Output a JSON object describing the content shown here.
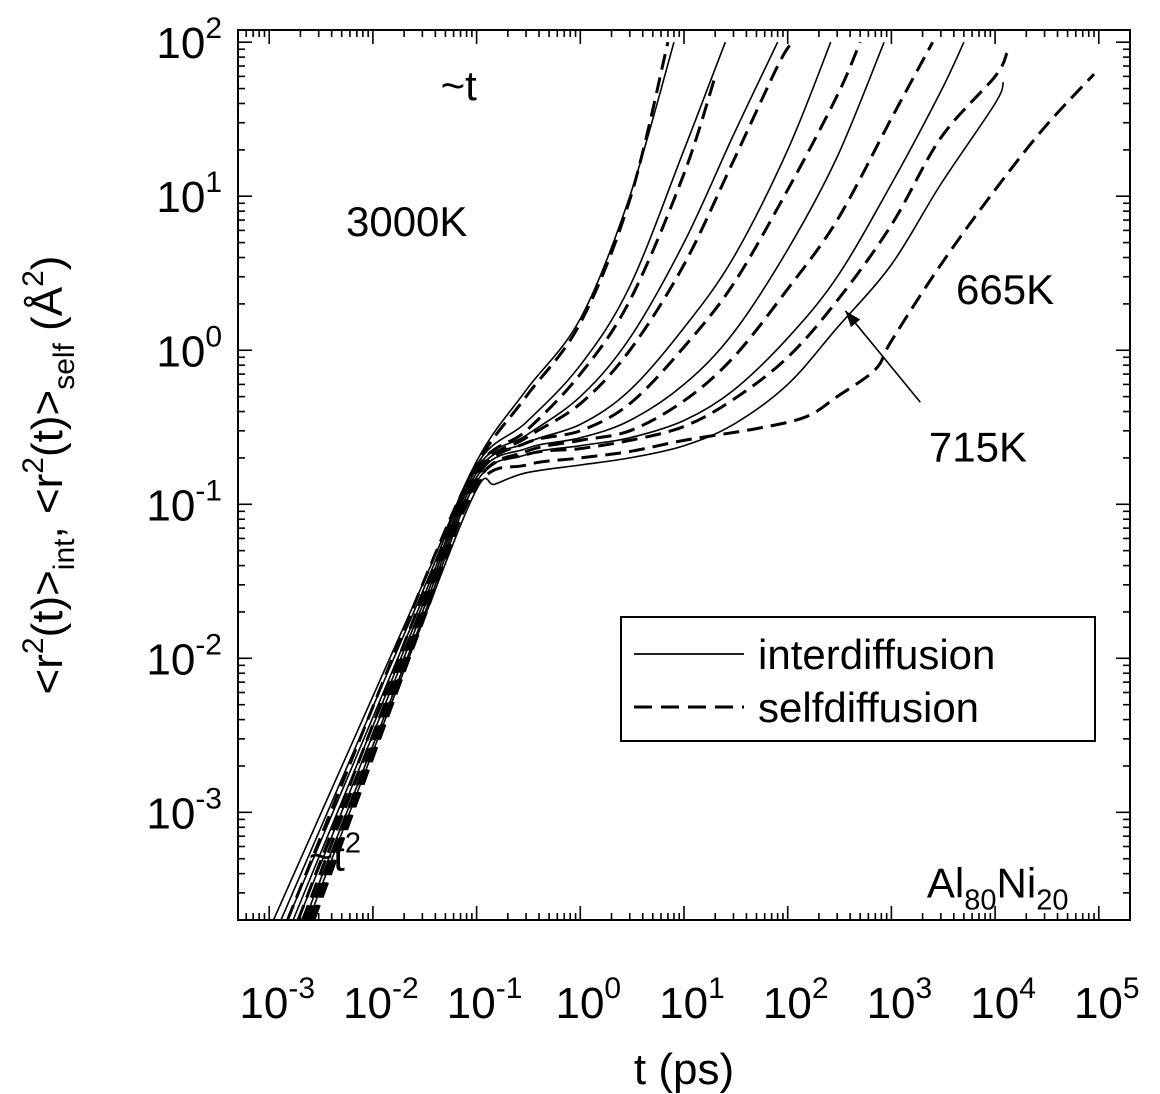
{
  "chart_data": {
    "type": "line",
    "x_scale": "log",
    "y_scale": "log",
    "xlim": [
      0.0005,
      200000
    ],
    "ylim": [
      0.0002,
      120
    ],
    "xlabel": "t (ps)",
    "ylabel": {
      "main": "<r",
      "sup1": "2",
      "mid1": "(t)>",
      "sub1": "int",
      "mid2": ", <r",
      "sup2": "2",
      "mid3": "(t)>",
      "sub2": "self",
      "mid4": " (Å",
      "sup3": "2",
      "end": ")"
    },
    "x_ticks": [
      {
        "value": 0.001,
        "base": "10",
        "exp": "-3"
      },
      {
        "value": 0.01,
        "base": "10",
        "exp": "-2"
      },
      {
        "value": 0.1,
        "base": "10",
        "exp": "-1"
      },
      {
        "value": 1,
        "base": "10",
        "exp": "0"
      },
      {
        "value": 10,
        "base": "10",
        "exp": "1"
      },
      {
        "value": 100,
        "base": "10",
        "exp": "2"
      },
      {
        "value": 1000,
        "base": "10",
        "exp": "3"
      },
      {
        "value": 10000,
        "base": "10",
        "exp": "4"
      },
      {
        "value": 100000,
        "base": "10",
        "exp": "5"
      }
    ],
    "y_ticks": [
      {
        "value": 0.001,
        "base": "10",
        "exp": "-3"
      },
      {
        "value": 0.01,
        "base": "10",
        "exp": "-2"
      },
      {
        "value": 0.1,
        "base": "10",
        "exp": "-1"
      },
      {
        "value": 1,
        "base": "10",
        "exp": "0"
      },
      {
        "value": 10,
        "base": "10",
        "exp": "1"
      },
      {
        "value": 100,
        "base": "10",
        "exp": "2"
      }
    ],
    "legend": {
      "placement": "lower-right",
      "entries": [
        {
          "label": "interdiffusion",
          "style": "solid"
        },
        {
          "label": "selfdiffusion",
          "style": "dashed"
        }
      ]
    },
    "annotations": {
      "slope_t": {
        "text": "~t",
        "x": 0.045,
        "y": 42
      },
      "slope_t2": {
        "base": "~t",
        "exp": "2",
        "x": 0.0024,
        "y": 0.00042
      },
      "label_3000K": {
        "text": "3000K",
        "x": 0.0055,
        "y": 5.5
      },
      "label_665K": {
        "text": "665K",
        "x": 4200,
        "y": 2.0
      },
      "label_715K": {
        "text": "715K",
        "x": 2300,
        "y": 0.19
      },
      "arrow_715K": {
        "from_x": 1900,
        "from_y": 0.46,
        "to_x": 360,
        "to_y": 1.8
      },
      "system": {
        "base1": "Al",
        "sub1": "80",
        "base2": "Ni",
        "sub2": "20",
        "x": 2200,
        "y": 0.00028
      }
    },
    "series": [
      {
        "style": "solid",
        "points": [
          [
            0.0011,
            0.0002
          ],
          [
            0.03,
            0.03
          ],
          [
            0.1,
            0.19
          ],
          [
            0.3,
            0.55
          ],
          [
            1,
            1.6
          ],
          [
            3,
            10
          ],
          [
            8,
            100
          ]
        ]
      },
      {
        "style": "dashed",
        "points": [
          [
            0.0015,
            0.0002
          ],
          [
            0.03,
            0.03
          ],
          [
            0.1,
            0.18
          ],
          [
            0.3,
            0.5
          ],
          [
            1,
            1.5
          ],
          [
            3,
            9.5
          ],
          [
            7,
            100
          ]
        ]
      },
      {
        "style": "solid",
        "points": [
          [
            0.0013,
            0.0002
          ],
          [
            0.03,
            0.027
          ],
          [
            0.1,
            0.18
          ],
          [
            0.3,
            0.34
          ],
          [
            1,
            0.8
          ],
          [
            3,
            2.6
          ],
          [
            10,
            20
          ],
          [
            25,
            100
          ]
        ]
      },
      {
        "style": "dashed",
        "points": [
          [
            0.0019,
            0.0002
          ],
          [
            0.03,
            0.025
          ],
          [
            0.1,
            0.17
          ],
          [
            0.3,
            0.3
          ],
          [
            1,
            0.7
          ],
          [
            3,
            2.1
          ],
          [
            10,
            14
          ],
          [
            20,
            60
          ]
        ]
      },
      {
        "style": "solid",
        "points": [
          [
            0.0015,
            0.0002
          ],
          [
            0.03,
            0.024
          ],
          [
            0.1,
            0.17
          ],
          [
            0.3,
            0.28
          ],
          [
            1,
            0.5
          ],
          [
            3,
            1.2
          ],
          [
            10,
            5
          ],
          [
            30,
            25
          ],
          [
            80,
            100
          ]
        ]
      },
      {
        "style": "dashed",
        "points": [
          [
            0.0021,
            0.0002
          ],
          [
            0.03,
            0.022
          ],
          [
            0.1,
            0.16
          ],
          [
            0.3,
            0.27
          ],
          [
            1,
            0.45
          ],
          [
            3,
            1
          ],
          [
            10,
            3.6
          ],
          [
            30,
            17
          ],
          [
            80,
            70
          ],
          [
            110,
            100
          ]
        ]
      },
      {
        "style": "solid",
        "points": [
          [
            0.0017,
            0.0002
          ],
          [
            0.03,
            0.022
          ],
          [
            0.1,
            0.16
          ],
          [
            0.3,
            0.25
          ],
          [
            1,
            0.33
          ],
          [
            3,
            0.55
          ],
          [
            10,
            1.4
          ],
          [
            30,
            4
          ],
          [
            100,
            20
          ],
          [
            260,
            100
          ]
        ]
      },
      {
        "style": "dashed",
        "points": [
          [
            0.0023,
            0.0002
          ],
          [
            0.03,
            0.02
          ],
          [
            0.1,
            0.15
          ],
          [
            0.3,
            0.25
          ],
          [
            1,
            0.3
          ],
          [
            3,
            0.45
          ],
          [
            10,
            1.05
          ],
          [
            30,
            2.7
          ],
          [
            100,
            11
          ],
          [
            300,
            45
          ],
          [
            500,
            100
          ]
        ]
      },
      {
        "style": "solid",
        "points": [
          [
            0.0019,
            0.0002
          ],
          [
            0.03,
            0.02
          ],
          [
            0.1,
            0.15
          ],
          [
            0.3,
            0.23
          ],
          [
            1,
            0.27
          ],
          [
            3,
            0.35
          ],
          [
            10,
            0.6
          ],
          [
            30,
            1.3
          ],
          [
            100,
            4.5
          ],
          [
            300,
            18
          ],
          [
            850,
            100
          ]
        ]
      },
      {
        "style": "dashed",
        "points": [
          [
            0.0025,
            0.0002
          ],
          [
            0.03,
            0.019
          ],
          [
            0.1,
            0.14
          ],
          [
            0.3,
            0.22
          ],
          [
            1,
            0.26
          ],
          [
            3,
            0.3
          ],
          [
            10,
            0.47
          ],
          [
            30,
            0.9
          ],
          [
            100,
            2.5
          ],
          [
            300,
            7
          ],
          [
            1000,
            32
          ],
          [
            2500,
            100
          ]
        ]
      },
      {
        "style": "solid",
        "points": [
          [
            0.0022,
            0.0002
          ],
          [
            0.03,
            0.018
          ],
          [
            0.1,
            0.14
          ],
          [
            0.3,
            0.21
          ],
          [
            1,
            0.24
          ],
          [
            3,
            0.27
          ],
          [
            10,
            0.35
          ],
          [
            30,
            0.55
          ],
          [
            100,
            1.2
          ],
          [
            300,
            3
          ],
          [
            1000,
            12
          ],
          [
            3000,
            48
          ],
          [
            5000,
            100
          ]
        ]
      },
      {
        "style": "dashed",
        "points": [
          [
            0.0026,
            0.0002
          ],
          [
            0.03,
            0.018
          ],
          [
            0.1,
            0.14
          ],
          [
            0.3,
            0.21
          ],
          [
            1,
            0.23
          ],
          [
            3,
            0.26
          ],
          [
            10,
            0.32
          ],
          [
            30,
            0.48
          ],
          [
            100,
            0.9
          ],
          [
            300,
            2.1
          ],
          [
            1000,
            6.5
          ],
          [
            3000,
            24
          ],
          [
            10000,
            60
          ],
          [
            13000,
            85
          ]
        ]
      },
      {
        "style": "solid",
        "points": [
          [
            0.0024,
            0.0002
          ],
          [
            0.03,
            0.017
          ],
          [
            0.1,
            0.125
          ],
          [
            0.15,
            0.135
          ],
          [
            0.3,
            0.16
          ],
          [
            1,
            0.18
          ],
          [
            3,
            0.2
          ],
          [
            10,
            0.24
          ],
          [
            30,
            0.33
          ],
          [
            100,
            0.6
          ],
          [
            300,
            1.4
          ],
          [
            1000,
            3.6
          ],
          [
            3000,
            12
          ],
          [
            10000,
            40
          ],
          [
            12000,
            55
          ]
        ]
      },
      {
        "style": "dashed",
        "points": [
          [
            0.0027,
            0.0002
          ],
          [
            0.03,
            0.017
          ],
          [
            0.1,
            0.13
          ],
          [
            0.3,
            0.18
          ],
          [
            1,
            0.2
          ],
          [
            3,
            0.22
          ],
          [
            10,
            0.26
          ],
          [
            50,
            0.31
          ],
          [
            150,
            0.37
          ],
          [
            300,
            0.5
          ],
          [
            700,
            0.75
          ],
          [
            1000,
            1.15
          ],
          [
            3000,
            3.6
          ],
          [
            10000,
            11
          ],
          [
            30000,
            28
          ],
          [
            90000,
            62
          ]
        ]
      }
    ]
  }
}
